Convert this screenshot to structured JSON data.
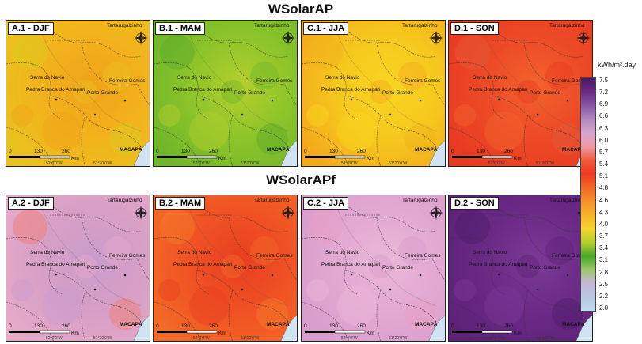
{
  "titles": {
    "top": "WSolarAP",
    "bottom": "WSolarAPf"
  },
  "places": {
    "tartarugalzinho": "Tartarugalzinho",
    "serra_do_navio": "Serra do Navio",
    "ferreira_gomes": "Ferreira Gomes",
    "pedra_branca": "Pedra Branca do Amapari",
    "porto_grande": "Porto Grande",
    "macapa": "MACAPÁ"
  },
  "scale": {
    "zero": "0",
    "mid": "130",
    "max": "260",
    "unit": "Km"
  },
  "coords": {
    "lon1": "52°0'0\"W",
    "lon2": "51°20'0\"W"
  },
  "panels": [
    {
      "id": "A1",
      "label": "A.1 - DJF",
      "season": "DJF",
      "dataset": "WSolarAP",
      "base": "#f2b21c",
      "c2": "#e9c21e",
      "c3": "#f0a218",
      "c4": "#d9cc22"
    },
    {
      "id": "B1",
      "label": "B.1 - MAM",
      "season": "MAM",
      "dataset": "WSolarAP",
      "base": "#8dc42a",
      "c2": "#6fb62a",
      "c3": "#b5cf2c",
      "c4": "#5aa82a"
    },
    {
      "id": "C1",
      "label": "C.1 - JJA",
      "season": "JJA",
      "dataset": "WSolarAP",
      "base": "#f6c81e",
      "c2": "#f3a91c",
      "c3": "#f8d620",
      "c4": "#efb31c"
    },
    {
      "id": "D1",
      "label": "D.1 - SON",
      "season": "SON",
      "dataset": "WSolarAP",
      "base": "#ec4a26",
      "c2": "#e83a22",
      "c3": "#f3632c",
      "c4": "#e25a3a"
    },
    {
      "id": "A2",
      "label": "A.2 - DJF",
      "season": "DJF",
      "dataset": "WSolarAPf",
      "base": "#d79fc6",
      "c2": "#e6a9c8",
      "c3": "#c99ccc",
      "c4": "#f07b6a"
    },
    {
      "id": "B2",
      "label": "B.2 - MAM",
      "season": "MAM",
      "dataset": "WSolarAPf",
      "base": "#f05224",
      "c2": "#f36a26",
      "c3": "#e83e20",
      "c4": "#f37c2a"
    },
    {
      "id": "C2",
      "label": "C.2 - JJA",
      "season": "JJA",
      "dataset": "WSolarAPf",
      "base": "#e2a9d2",
      "c2": "#d99ccc",
      "c3": "#eab8d8",
      "c4": "#e8a0c0"
    },
    {
      "id": "D2",
      "label": "D.2 - SON",
      "season": "SON",
      "dataset": "WSolarAPf",
      "base": "#6a2a86",
      "c2": "#5d2278",
      "c3": "#7b3a96",
      "c4": "#4e1c6a"
    }
  ],
  "legend": {
    "unit": "kWh/m².day",
    "ticks": [
      "7.5",
      "7.2",
      "6.9",
      "6.6",
      "6.3",
      "6.0",
      "5.7",
      "5.4",
      "5.1",
      "4.8",
      "4.6",
      "4.3",
      "4.0",
      "3.7",
      "3.4",
      "3.1",
      "2.8",
      "2.5",
      "2.2",
      "2.0"
    ],
    "colors": [
      "#4b1a66",
      "#6a2a86",
      "#8a56a8",
      "#b088c0",
      "#d6a6d0",
      "#ef9aa4",
      "#f05a3a",
      "#ee3a22",
      "#f36a26",
      "#f4922a",
      "#f6b42a",
      "#f6d62e",
      "#b5cf2c",
      "#48a82a",
      "#9bc86a",
      "#c8b7d8",
      "#b7c8e0",
      "#bcdcee"
    ]
  }
}
